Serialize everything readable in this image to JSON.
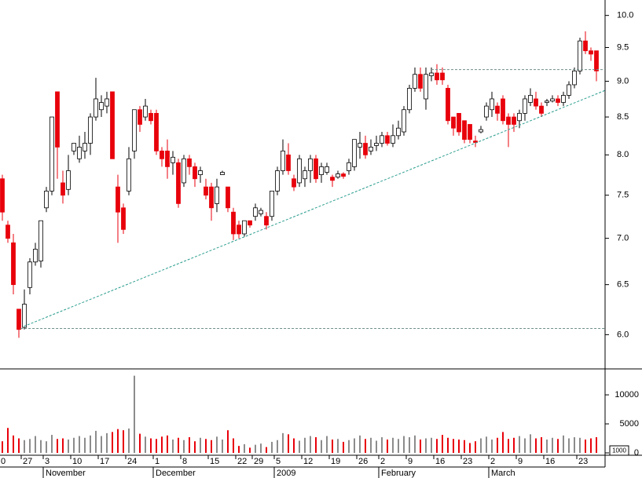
{
  "chart_data": {
    "type": "candlestick",
    "y_scale": "log",
    "grid": false,
    "categories": [
      "0",
      null,
      null,
      null,
      "27",
      null,
      null,
      null,
      "3",
      null,
      null,
      null,
      null,
      "10",
      null,
      null,
      null,
      null,
      "17",
      null,
      null,
      null,
      null,
      "24",
      null,
      null,
      null,
      null,
      "1",
      null,
      null,
      null,
      null,
      "8",
      null,
      null,
      null,
      null,
      "15",
      null,
      null,
      null,
      null,
      "22",
      null,
      null,
      "29",
      null,
      null,
      null,
      "5",
      null,
      null,
      null,
      null,
      "12",
      null,
      null,
      null,
      null,
      "19",
      null,
      null,
      null,
      null,
      "26",
      null,
      null,
      null,
      "2",
      null,
      null,
      null,
      null,
      "9",
      null,
      null,
      null,
      null,
      "16",
      null,
      null,
      null,
      null,
      "23",
      null,
      null,
      null,
      null,
      "2",
      null,
      null,
      null,
      null,
      "9",
      null,
      null,
      null,
      null,
      "16",
      null,
      null,
      null,
      null,
      null,
      "23",
      null,
      null,
      null
    ],
    "months": [
      {
        "value": 8,
        "label": "November"
      },
      {
        "value": 28,
        "label": "December"
      },
      {
        "value": 50,
        "label": "2009"
      },
      {
        "value": 69,
        "label": "February"
      },
      {
        "value": 89,
        "label": "March"
      }
    ],
    "open": [
      7.7,
      7.15,
      6.95,
      6.25,
      6.07,
      6.47,
      6.74,
      6.75,
      7.35,
      7.55,
      8.85,
      7.65,
      7.57,
      8.05,
      7.95,
      8.05,
      8.15,
      8.5,
      8.6,
      8.65,
      8.85,
      7.6,
      7.35,
      7.55,
      8.05,
      8.6,
      8.5,
      8.55,
      8.55,
      8.05,
      8.05,
      7.9,
      7.9,
      7.65,
      7.95,
      7.85,
      7.75,
      7.6,
      7.6,
      7.4,
      7.75,
      7.6,
      7.3,
      7.15,
      7.05,
      7.2,
      7.25,
      7.28,
      7.25,
      7.25,
      7.55,
      7.8,
      8.0,
      7.7,
      7.65,
      7.7,
      7.8,
      7.95,
      7.75,
      7.78,
      7.72,
      7.72,
      7.76,
      7.8,
      7.85,
      8.1,
      8.15,
      8.05,
      8.12,
      8.15,
      8.25,
      8.15,
      8.25,
      8.3,
      8.6,
      8.9,
      9.1,
      8.75,
      9.08,
      9.12,
      9.12,
      8.9,
      8.5,
      8.55,
      8.45,
      8.4,
      8.18,
      8.3,
      8.5,
      8.6,
      8.65,
      8.75,
      8.5,
      8.5,
      8.45,
      8.55,
      8.7,
      8.75,
      8.65,
      8.7,
      8.72,
      8.75,
      8.7,
      8.8,
      8.95,
      9.15,
      9.6,
      9.45,
      9.45
    ],
    "high": [
      7.75,
      7.2,
      7.05,
      6.25,
      6.45,
      6.78,
      6.95,
      7.2,
      7.6,
      8.5,
      8.85,
      7.8,
      8.0,
      8.15,
      8.25,
      8.3,
      8.55,
      9.05,
      8.8,
      8.85,
      8.85,
      7.75,
      7.4,
      8.1,
      8.6,
      8.65,
      8.75,
      8.6,
      8.6,
      8.1,
      8.2,
      8.05,
      7.95,
      8.0,
      8.0,
      7.9,
      7.85,
      7.7,
      7.65,
      7.7,
      7.8,
      7.6,
      7.35,
      7.2,
      7.2,
      7.2,
      7.4,
      7.35,
      7.3,
      7.55,
      7.85,
      8.2,
      8.15,
      7.75,
      8.0,
      7.85,
      8.0,
      8.0,
      7.9,
      7.9,
      7.75,
      7.8,
      7.78,
      7.95,
      8.2,
      8.3,
      8.25,
      8.2,
      8.25,
      8.3,
      8.3,
      8.4,
      8.45,
      8.65,
      8.95,
      9.2,
      9.2,
      9.2,
      9.2,
      9.25,
      9.2,
      8.95,
      8.5,
      8.55,
      8.45,
      8.4,
      8.25,
      8.38,
      8.7,
      8.85,
      8.7,
      8.8,
      8.55,
      8.55,
      8.6,
      8.8,
      8.9,
      8.85,
      8.7,
      8.75,
      8.8,
      8.8,
      8.85,
      9.0,
      9.2,
      9.65,
      9.75,
      9.5,
      9.45
    ],
    "low": [
      7.2,
      6.95,
      6.4,
      5.97,
      6.05,
      6.4,
      6.7,
      6.68,
      7.3,
      7.5,
      7.7,
      7.4,
      7.5,
      8.0,
      7.9,
      7.95,
      8.0,
      8.45,
      8.5,
      8.55,
      7.95,
      6.95,
      7.05,
      7.5,
      7.95,
      8.3,
      8.45,
      8.4,
      8.0,
      7.85,
      7.7,
      7.75,
      7.35,
      7.6,
      7.75,
      7.6,
      7.65,
      7.45,
      7.2,
      7.3,
      7.75,
      7.3,
      6.98,
      7.0,
      7.02,
      7.12,
      7.2,
      7.25,
      7.1,
      7.2,
      7.5,
      7.75,
      7.75,
      7.55,
      7.6,
      7.6,
      7.65,
      7.65,
      7.65,
      7.75,
      7.6,
      7.7,
      7.7,
      7.75,
      7.8,
      7.95,
      7.95,
      8.0,
      8.05,
      8.1,
      8.12,
      8.1,
      8.2,
      8.25,
      8.55,
      8.85,
      8.85,
      8.6,
      9.0,
      8.95,
      8.95,
      8.4,
      8.25,
      8.25,
      8.15,
      8.15,
      8.1,
      8.28,
      8.45,
      8.5,
      8.45,
      8.4,
      8.1,
      8.3,
      8.35,
      8.45,
      8.65,
      8.6,
      8.5,
      8.65,
      8.7,
      8.65,
      8.65,
      8.75,
      8.9,
      9.1,
      9.4,
      9.3,
      9.0
    ],
    "close": [
      7.3,
      7.0,
      6.5,
      6.05,
      6.3,
      6.74,
      6.88,
      7.2,
      7.55,
      8.5,
      8.1,
      7.5,
      7.8,
      8.15,
      8.1,
      8.15,
      8.5,
      8.75,
      8.7,
      8.75,
      7.95,
      7.3,
      7.1,
      7.95,
      8.6,
      8.4,
      8.65,
      8.45,
      8.05,
      7.95,
      7.85,
      7.97,
      7.4,
      7.95,
      7.85,
      7.7,
      7.8,
      7.5,
      7.35,
      7.6,
      7.78,
      7.35,
      7.05,
      7.05,
      7.2,
      7.15,
      7.35,
      7.32,
      7.15,
      7.55,
      7.8,
      8.05,
      7.8,
      7.6,
      7.95,
      7.8,
      7.95,
      7.7,
      7.85,
      7.85,
      7.68,
      7.76,
      7.73,
      7.9,
      8.2,
      8.15,
      8.0,
      8.1,
      8.15,
      8.25,
      8.15,
      8.25,
      8.35,
      8.6,
      8.9,
      9.1,
      8.9,
      9.1,
      9.12,
      9.02,
      9.02,
      8.45,
      8.35,
      8.3,
      8.2,
      8.2,
      8.16,
      8.33,
      8.65,
      8.75,
      8.55,
      8.45,
      8.4,
      8.4,
      8.55,
      8.75,
      8.8,
      8.65,
      8.55,
      8.72,
      8.75,
      8.7,
      8.8,
      8.95,
      9.15,
      9.6,
      9.45,
      9.4,
      9.15
    ],
    "volume": [
      2000,
      4300,
      3000,
      2500,
      2200,
      2400,
      2900,
      2200,
      2000,
      3100,
      2400,
      2500,
      2300,
      2600,
      2900,
      2600,
      3000,
      3800,
      2900,
      3400,
      3600,
      4100,
      3900,
      4200,
      13300,
      3300,
      2800,
      2500,
      2400,
      2800,
      3000,
      2300,
      2600,
      2200,
      2700,
      2000,
      2600,
      2400,
      2200,
      2800,
      2300,
      3900,
      2500,
      1200,
      1500,
      900,
      1400,
      1600,
      1000,
      1900,
      2200,
      3400,
      3200,
      2500,
      2100,
      2600,
      2900,
      2700,
      2200,
      2900,
      2300,
      2400,
      1900,
      2200,
      2500,
      3000,
      2400,
      2600,
      2100,
      2700,
      2300,
      2600,
      2400,
      2900,
      2700,
      3000,
      2300,
      2500,
      2600,
      2400,
      3100,
      2600,
      2400,
      2300,
      2200,
      1700,
      2000,
      2500,
      2800,
      2300,
      2600,
      3600,
      2400,
      2600,
      2900,
      2500,
      3200,
      2500,
      2700,
      2300,
      2600,
      2400,
      3000,
      2500,
      2700,
      2600,
      2300,
      2500,
      2700
    ],
    "ylim": [
      5.68,
      10.25
    ],
    "yticks": [
      {
        "value": 6,
        "label": "6.0"
      },
      {
        "value": 6.5,
        "label": "6.5"
      },
      {
        "value": 7,
        "label": "7.0"
      },
      {
        "value": 7.5,
        "label": "7.5"
      },
      {
        "value": 8,
        "label": "8.0"
      },
      {
        "value": 8.5,
        "label": "8.5"
      },
      {
        "value": 9,
        "label": "9.0"
      },
      {
        "value": 9.5,
        "label": "9.5"
      },
      {
        "value": 10,
        "label": "10.0"
      }
    ],
    "y2lim": [
      0,
      14200
    ],
    "y2ticks": [
      0,
      5000,
      10000
    ],
    "volume_scale_label": "1000",
    "trend_lines": [
      {
        "x": [
          3.9,
          109.6
        ],
        "y": [
          6.08,
          8.87
        ],
        "color": "#2a9d8f"
      },
      {
        "x": [
          3.3,
          109.6
        ],
        "y": [
          6.06,
          6.06
        ],
        "color": "#6f8f8a"
      },
      {
        "x": [
          78,
          109.6
        ],
        "y": [
          9.17,
          9.17
        ],
        "color": "#6f8f8a"
      }
    ],
    "up_color": "#ffffff",
    "down_color": "#e8000b",
    "outline_color": "#000000",
    "volume_up_color": "#8c8c8c",
    "volume_down_color": "#e8000b"
  }
}
